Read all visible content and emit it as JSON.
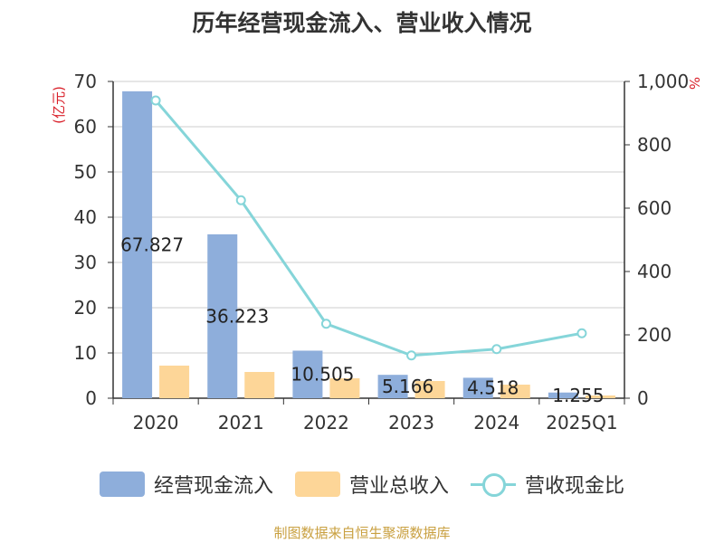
{
  "chart_data": {
    "type": "bar",
    "title": "历年经营现金流入、营业收入情况",
    "left_axis": {
      "label": "(亿元)",
      "ylim": [
        0,
        70
      ],
      "ticks": [
        0,
        10,
        20,
        30,
        40,
        50,
        60,
        70
      ]
    },
    "right_axis": {
      "label": "%",
      "ylim": [
        0,
        1000
      ],
      "ticks": [
        "0",
        "200",
        "400",
        "600",
        "800",
        "1,000"
      ]
    },
    "categories": [
      "2020",
      "2021",
      "2022",
      "2023",
      "2024",
      "2025Q1"
    ],
    "series": [
      {
        "name": "经营现金流入",
        "type": "bar",
        "axis": "left",
        "color": "#8eaedb",
        "values": [
          67.827,
          36.223,
          10.505,
          5.166,
          4.518,
          1.255
        ],
        "labels": [
          "67.827",
          "36.223",
          "10.505",
          "5.166",
          "4.518",
          "1.255"
        ]
      },
      {
        "name": "营业总收入",
        "type": "bar",
        "axis": "left",
        "color": "#fdd698",
        "values": [
          7.2,
          5.8,
          4.4,
          3.8,
          3.0,
          0.6
        ]
      },
      {
        "name": "营收现金比",
        "type": "line",
        "axis": "right",
        "color": "#85d5d9",
        "values": [
          940,
          625,
          235,
          135,
          155,
          205
        ]
      }
    ],
    "grid": true,
    "legend_position": "bottom"
  },
  "source": "制图数据来自恒生聚源数据库"
}
